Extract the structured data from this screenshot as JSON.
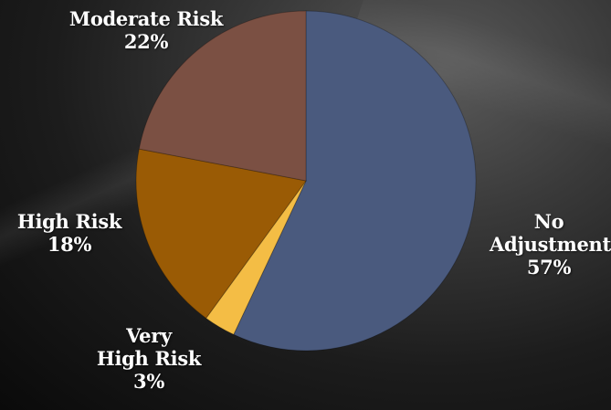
{
  "chart_data": {
    "type": "pie",
    "title": "",
    "slices": [
      {
        "label_lines": [
          "No",
          "Adjustment"
        ],
        "percent_text": "57%",
        "value": 57,
        "color": "#4a5a7e"
      },
      {
        "label_lines": [
          "Very",
          "High Risk"
        ],
        "percent_text": "3%",
        "value": 3,
        "color": "#f4bd45"
      },
      {
        "label_lines": [
          "High Risk"
        ],
        "percent_text": "18%",
        "value": 18,
        "color": "#9a5b05"
      },
      {
        "label_lines": [
          "Moderate Risk"
        ],
        "percent_text": "22%",
        "value": 22,
        "color": "#7b5043"
      }
    ],
    "start": "top",
    "direction": "clockwise"
  }
}
